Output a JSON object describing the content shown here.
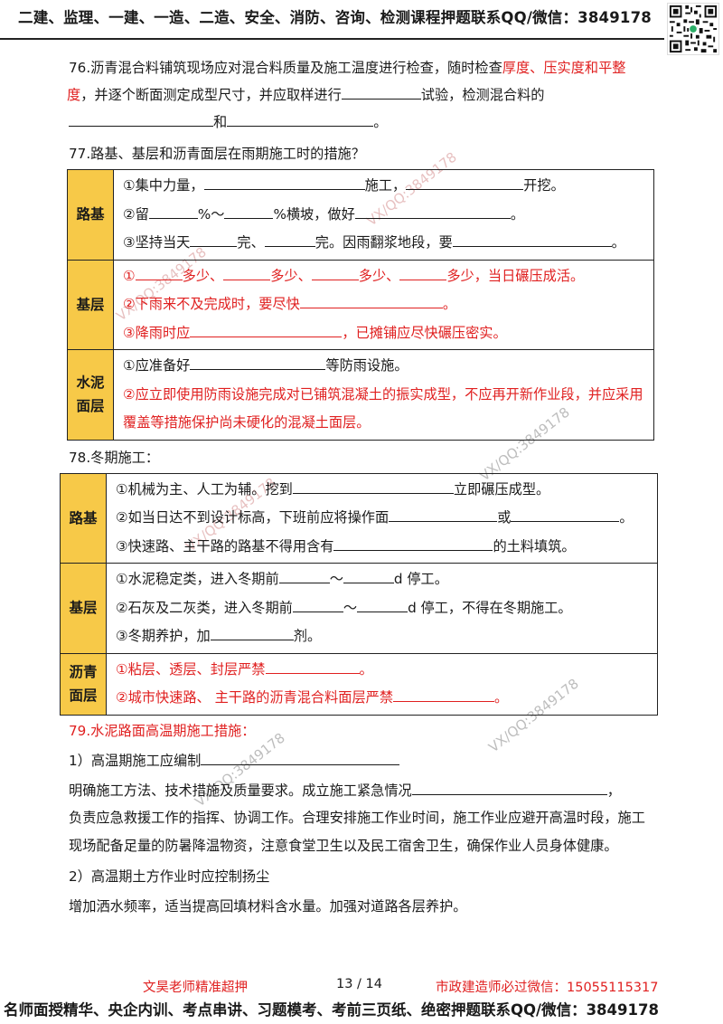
{
  "header": {
    "text": "二建、监理、一建、一造、二造、安全、消防、咨询、检测课程押题联系QQ/微信：3849178"
  },
  "watermark": "VX/QQ:3849178",
  "q76": {
    "p1": "76.沥青混合料铺筑现场应对混合料质量及施工温度进行检查，随时检查",
    "red1": "厚度、压实度和平整",
    "red2": "度",
    "p2": "，并逐个断面测定成型尺寸，并应取样进行",
    "p3": "试验，检测混合料的",
    "p4": "和",
    "p5": "。"
  },
  "q77": {
    "title": "77.路基、基层和沥青面层在雨期施工时的措施？",
    "roadbed": {
      "label": "路基",
      "l1a": "①集中力量，",
      "l1b": "施工，",
      "l1c": "开挖。",
      "l2a": "②留",
      "l2b": "%～",
      "l2c": "%横坡，做好",
      "l2d": "。",
      "l3a": "③坚持当天",
      "l3b": "完、",
      "l3c": "完。因雨翻浆地段，要",
      "l3d": "。"
    },
    "base": {
      "label": "基层",
      "l1a": "①",
      "l1b": "多少、",
      "l1c": "多少、",
      "l1d": "多少、",
      "l1e": "多少，当日碾压成活。",
      "l2a": "②下雨来不及完成时，要尽快",
      "l2b": "。",
      "l3a": "③降雨时应",
      "l3b": "，已摊铺应尽快碾压密实。"
    },
    "cement": {
      "label1": "水泥",
      "label2": "面层",
      "l1a": "①应准备好",
      "l1b": "等防雨设施。",
      "l2": "②应立即使用防雨设施完成对已铺筑混凝土的振实成型，不应再开新作业段，并应采用覆盖等措施保护尚未硬化的混凝土面层。"
    }
  },
  "q78": {
    "title": "78.冬期施工：",
    "roadbed": {
      "label": "路基",
      "l1a": "①机械为主、人工为辅。挖到",
      "l1b": "立即碾压成型。",
      "l2a": "②如当日达不到设计标高，下班前应将操作面",
      "l2b": "或",
      "l2c": "。",
      "l3a": "③快速路、主干路的路基不得用含有",
      "l3b": "的土料填筑。"
    },
    "base": {
      "label": "基层",
      "l1a": "①水泥稳定类，进入冬期前",
      "l1b": "～",
      "l1c": "d 停工。",
      "l2a": "②石灰及二灰类，进入冬期前",
      "l2b": "～",
      "l2c": "d 停工，不得在冬期施工。",
      "l3a": "③冬期养护，加",
      "l3b": "剂。"
    },
    "asphalt": {
      "label1": "沥青",
      "label2": "面层",
      "l1a": "①粘层、透层、封层严禁",
      "l1b": "。",
      "l2a": "②城市快速路、 主干路的沥青混合料面层严禁",
      "l2b": "。"
    }
  },
  "q79": {
    "title": "79.水泥路面高温期施工措施：",
    "s1": "1）高温期施工应编制",
    "s1p": "明确施工方法、技术措施及质量要求。成立施工紧急情况",
    "s1p_end": "，",
    "s1p2": "负责应急救援工作的指挥、协调工作。合理安排施工作业时间，施工作业应避开高温时段，施工现场配备足量的防暑降温物资，注意食堂卫生以及民工宿舍卫生，确保作业人员身体健康。",
    "s2": "2）高温期土方作业时应控制扬尘",
    "s2p": "增加洒水频率，适当提高回填材料含水量。加强对道路各层养护。"
  },
  "footer": {
    "left": "文昊老师精准超押",
    "page": "13 / 14",
    "right": "市政建造师必过微信：15055115317",
    "bottom": "名师面授精华、央企内训、考点串讲、习题模考、考前三页纸、绝密押题联系QQ/微信：3849178"
  },
  "colors": {
    "accent_red": "#e02020",
    "label_yellow": "#f7c948"
  }
}
